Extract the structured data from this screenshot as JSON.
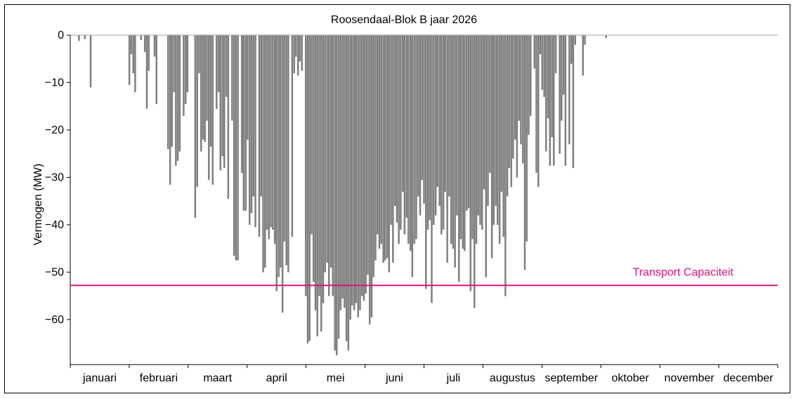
{
  "chart_data": {
    "type": "bar",
    "title": "Roosendaal-Blok B jaar 2026",
    "ylabel": "Vermogen (MW)",
    "xlabel": "",
    "ylim": [
      -69.5,
      0
    ],
    "yticks": [
      0,
      -10,
      -20,
      -30,
      -40,
      -50,
      -60
    ],
    "ytick_labels": [
      "0",
      "−10",
      "−20",
      "−30",
      "−40",
      "−50",
      "−60"
    ],
    "months": [
      "januari",
      "februari",
      "maart",
      "april",
      "mei",
      "juni",
      "juli",
      "augustus",
      "september",
      "oktober",
      "november",
      "december"
    ],
    "bar_color": "#808080",
    "capacity": {
      "label": "Transport Capaciteit",
      "value": -52.8,
      "color": "#e0127a"
    },
    "series": [
      {
        "values": [
          [
            4,
            -1.2
          ],
          [
            7,
            -0.8
          ],
          [
            10,
            -11
          ],
          [
            30,
            -10.5
          ],
          [
            31,
            -4
          ],
          [
            32,
            -8
          ],
          [
            33,
            -12
          ],
          [
            36,
            -1
          ],
          [
            38,
            -3.5
          ],
          [
            39,
            -15.5
          ],
          [
            40,
            -7.5
          ],
          [
            43,
            -4.5
          ],
          [
            44,
            -14.5
          ],
          [
            50,
            -24
          ],
          [
            51,
            -31.5
          ],
          [
            52,
            -23.5
          ],
          [
            53,
            -12
          ],
          [
            54,
            -27.5
          ],
          [
            55,
            -26.5
          ],
          [
            56,
            -24.5
          ],
          [
            58,
            -17
          ],
          [
            59,
            -14.5
          ],
          [
            60,
            -12
          ],
          [
            64,
            -38.5
          ],
          [
            65,
            -32
          ],
          [
            66,
            -8
          ],
          [
            67,
            -24.5
          ],
          [
            68,
            -22
          ],
          [
            69,
            -22.5
          ],
          [
            70,
            -18
          ],
          [
            71,
            -30.5
          ],
          [
            72,
            -23.5
          ],
          [
            73,
            -31.5
          ],
          [
            75,
            -15.5
          ],
          [
            76,
            -12
          ],
          [
            77,
            -28.5
          ],
          [
            78,
            -25.5
          ],
          [
            79,
            -28
          ],
          [
            80,
            -13
          ],
          [
            81,
            -34.5
          ],
          [
            83,
            -18
          ],
          [
            84,
            -46.5
          ],
          [
            85,
            -47.5
          ],
          [
            86,
            -47.5
          ],
          [
            88,
            -29
          ],
          [
            89,
            -37
          ],
          [
            90,
            -37
          ],
          [
            91,
            -22
          ],
          [
            92,
            -40
          ],
          [
            93,
            -37.5
          ],
          [
            94,
            -34
          ],
          [
            95,
            -40.5
          ],
          [
            97,
            -42.5
          ],
          [
            98,
            -34
          ],
          [
            99,
            -50
          ],
          [
            100,
            -49
          ],
          [
            101,
            -41
          ],
          [
            102,
            -43
          ],
          [
            103,
            -40.5
          ],
          [
            104,
            -41
          ],
          [
            105,
            -44
          ],
          [
            106,
            -54
          ],
          [
            107,
            -51
          ],
          [
            108,
            -49
          ],
          [
            109,
            -58.5
          ],
          [
            110,
            -43.5
          ],
          [
            111,
            -48.5
          ],
          [
            112,
            -50
          ],
          [
            114,
            -42.5
          ],
          [
            115,
            -8
          ],
          [
            116,
            -4.5
          ],
          [
            117,
            -8.5
          ],
          [
            118,
            -5.5
          ],
          [
            119,
            -7.5
          ],
          [
            121,
            -55
          ],
          [
            122,
            -65
          ],
          [
            123,
            -64.5
          ],
          [
            124,
            -42
          ],
          [
            125,
            -52
          ],
          [
            126,
            -58
          ],
          [
            127,
            -63.5
          ],
          [
            128,
            -55
          ],
          [
            129,
            -62.5
          ],
          [
            130,
            -56.5
          ],
          [
            131,
            -50
          ],
          [
            132,
            -48
          ],
          [
            133,
            -55
          ],
          [
            134,
            -49
          ],
          [
            135,
            -55
          ],
          [
            136,
            -66.5
          ],
          [
            137,
            -67.5
          ],
          [
            138,
            -64
          ],
          [
            139,
            -58
          ],
          [
            140,
            -55.5
          ],
          [
            141,
            -57.5
          ],
          [
            142,
            -64.5
          ],
          [
            143,
            -66.5
          ],
          [
            144,
            -60
          ],
          [
            145,
            -57
          ],
          [
            146,
            -58
          ],
          [
            147,
            -56.5
          ],
          [
            148,
            -59.5
          ],
          [
            149,
            -58
          ],
          [
            150,
            -55
          ],
          [
            151,
            -56
          ],
          [
            152,
            -54.5
          ],
          [
            153,
            -50.5
          ],
          [
            154,
            -61
          ],
          [
            155,
            -59.5
          ],
          [
            156,
            -51
          ],
          [
            157,
            -47.5
          ],
          [
            158,
            -42
          ],
          [
            159,
            -45
          ],
          [
            160,
            -44
          ],
          [
            161,
            -48
          ],
          [
            162,
            -47.5
          ],
          [
            163,
            -47
          ],
          [
            164,
            -50
          ],
          [
            165,
            -40
          ],
          [
            166,
            -48
          ],
          [
            167,
            -36
          ],
          [
            168,
            -39.5
          ],
          [
            169,
            -44
          ],
          [
            170,
            -41
          ],
          [
            171,
            -33
          ],
          [
            172,
            -42
          ],
          [
            173,
            -38.5
          ],
          [
            174,
            -44
          ],
          [
            175,
            -45.5
          ],
          [
            176,
            -51
          ],
          [
            177,
            -44
          ],
          [
            178,
            -43
          ],
          [
            179,
            -34
          ],
          [
            180,
            -38
          ],
          [
            181,
            -30.5
          ],
          [
            182,
            -35.5
          ],
          [
            183,
            -53.5
          ],
          [
            184,
            -41
          ],
          [
            185,
            -39
          ],
          [
            186,
            -56.5
          ],
          [
            187,
            -40
          ],
          [
            188,
            -38
          ],
          [
            189,
            -32
          ],
          [
            190,
            -36
          ],
          [
            191,
            -42
          ],
          [
            192,
            -41
          ],
          [
            193,
            -33
          ],
          [
            194,
            -48
          ],
          [
            195,
            -34
          ],
          [
            196,
            -44
          ],
          [
            197,
            -45
          ],
          [
            198,
            -49
          ],
          [
            199,
            -38
          ],
          [
            200,
            -52
          ],
          [
            201,
            -43
          ],
          [
            202,
            -45
          ],
          [
            203,
            -45.5
          ],
          [
            204,
            -37
          ],
          [
            205,
            -36.5
          ],
          [
            206,
            -54
          ],
          [
            207,
            -43
          ],
          [
            208,
            -57.5
          ],
          [
            209,
            -44
          ],
          [
            210,
            -38
          ],
          [
            211,
            -40
          ],
          [
            212,
            -41
          ],
          [
            213,
            -32.5
          ],
          [
            214,
            -51
          ],
          [
            215,
            -36
          ],
          [
            216,
            -29
          ],
          [
            217,
            -47
          ],
          [
            218,
            -40
          ],
          [
            219,
            -36
          ],
          [
            220,
            -40
          ],
          [
            221,
            -44
          ],
          [
            222,
            -33
          ],
          [
            223,
            -42.5
          ],
          [
            224,
            -55
          ],
          [
            225,
            -34
          ],
          [
            226,
            -28
          ],
          [
            227,
            -32
          ],
          [
            228,
            -26
          ],
          [
            229,
            -22
          ],
          [
            230,
            -30
          ],
          [
            231,
            -18
          ],
          [
            232,
            -23
          ],
          [
            233,
            -27
          ],
          [
            234,
            -49.5
          ],
          [
            235,
            -43.5
          ],
          [
            236,
            -21
          ],
          [
            237,
            -17
          ],
          [
            239,
            -7
          ],
          [
            240,
            -29
          ],
          [
            241,
            -32
          ],
          [
            242,
            -4
          ],
          [
            243,
            -11.5
          ],
          [
            244,
            -13
          ],
          [
            245,
            -24.5
          ],
          [
            246,
            -17.5
          ],
          [
            247,
            -27.5
          ],
          [
            248,
            -21.5
          ],
          [
            249,
            -27.5
          ],
          [
            250,
            -8
          ],
          [
            252,
            -25
          ],
          [
            253,
            -18
          ],
          [
            254,
            -12.5
          ],
          [
            255,
            -27.5
          ],
          [
            257,
            -23
          ],
          [
            258,
            -6
          ],
          [
            259,
            -28
          ],
          [
            260,
            -2
          ],
          [
            264,
            -8.5
          ],
          [
            265,
            -2
          ],
          [
            276,
            -0.6
          ]
        ]
      }
    ]
  }
}
